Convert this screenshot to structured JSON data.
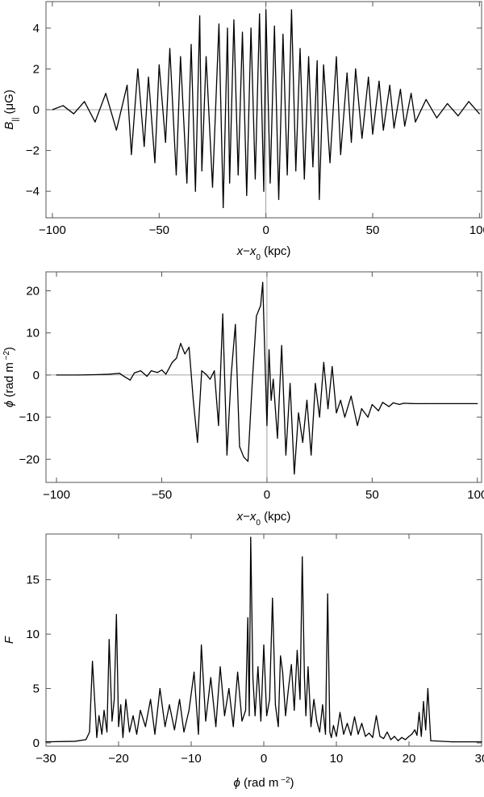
{
  "chart_data": [
    {
      "type": "line",
      "id": "panel-b-parallel",
      "title": "",
      "xlabel": {
        "pre": "x",
        "mid": "−x",
        "sub": "0",
        "post": "  (kpc)"
      },
      "ylabel": {
        "pre": "B",
        "sub": "||",
        "post": "  (μG)"
      },
      "xlim": [
        -103,
        101
      ],
      "ylim": [
        -5.3,
        5.3
      ],
      "xticks": [
        -100,
        -50,
        0,
        50,
        100
      ],
      "yticks": [
        -4,
        -2,
        0,
        2,
        4
      ],
      "xtick_labels": [
        "−100",
        "−50",
        "0",
        "50",
        "100"
      ],
      "ytick_labels": [
        "−4",
        "−2",
        "0",
        "2",
        "4"
      ],
      "zero_lines": {
        "x": 0,
        "y": 0
      },
      "grid": false,
      "series": [
        {
          "color": "#000000",
          "x": [
            -100,
            -95,
            -90,
            -85,
            -80,
            -75,
            -70,
            -65,
            -63,
            -60,
            -57,
            -55,
            -52,
            -50,
            -47,
            -45,
            -42,
            -40,
            -37,
            -35,
            -33,
            -31,
            -30,
            -28,
            -25,
            -22,
            -20,
            -18,
            -17,
            -15,
            -13,
            -11,
            -9,
            -7,
            -5,
            -3,
            -1,
            0,
            2,
            4,
            6,
            8,
            10,
            12,
            14,
            16,
            18,
            20,
            22,
            24,
            25,
            27,
            30,
            33,
            35,
            38,
            40,
            42,
            45,
            48,
            50,
            53,
            55,
            58,
            60,
            63,
            65,
            68,
            70,
            75,
            80,
            85,
            90,
            95,
            100
          ],
          "y": [
            0.0,
            0.2,
            -0.2,
            0.4,
            -0.6,
            0.8,
            -1.0,
            1.2,
            -2.2,
            2.0,
            -1.8,
            1.6,
            -2.6,
            2.2,
            -1.6,
            3.0,
            -3.2,
            2.6,
            -3.6,
            3.2,
            -4.0,
            4.6,
            -3.0,
            2.6,
            -3.8,
            4.2,
            -4.8,
            4.0,
            -3.6,
            4.4,
            -3.2,
            3.8,
            -4.2,
            4.0,
            -3.4,
            4.7,
            -4.0,
            4.9,
            -3.6,
            4.1,
            -4.4,
            3.7,
            -3.2,
            4.9,
            -3.0,
            3.0,
            -3.4,
            2.6,
            -2.8,
            2.4,
            -4.4,
            2.2,
            -2.6,
            2.6,
            -2.2,
            1.8,
            -1.6,
            2.0,
            -1.4,
            1.6,
            -1.2,
            1.4,
            -1.0,
            1.2,
            -0.9,
            1.0,
            -0.8,
            0.8,
            -0.6,
            0.5,
            -0.4,
            0.3,
            -0.3,
            0.4,
            -0.2
          ]
        }
      ]
    },
    {
      "type": "line",
      "id": "panel-phi",
      "title": "",
      "xlabel": {
        "pre": "x",
        "mid": "−x",
        "sub": "0",
        "post": " (kpc)"
      },
      "ylabel": {
        "pre": "ϕ",
        "sub": "",
        "post": " (rad m",
        "sup": " −2",
        "end": ")"
      },
      "xlim": [
        -105,
        102
      ],
      "ylim": [
        -25.5,
        24.5
      ],
      "xticks": [
        -100,
        -50,
        0,
        50,
        100
      ],
      "yticks": [
        -20,
        -10,
        0,
        10,
        20
      ],
      "xtick_labels": [
        "−100",
        "−50",
        "0",
        "50",
        "100"
      ],
      "ytick_labels": [
        "−20",
        "−10",
        "0",
        "10",
        "20"
      ],
      "zero_lines": {
        "x": 0,
        "y": 0
      },
      "grid": false,
      "series": [
        {
          "color": "#000000",
          "x": [
            -100,
            -90,
            -80,
            -75,
            -70,
            -68,
            -65,
            -63,
            -60,
            -57,
            -55,
            -52,
            -50,
            -48,
            -45,
            -43,
            -41,
            -39,
            -37,
            -35,
            -33,
            -31,
            -29,
            -27,
            -25,
            -23,
            -21,
            -19,
            -17,
            -15,
            -13,
            -11,
            -9,
            -7,
            -5,
            -3,
            -2,
            -1,
            0,
            1,
            2,
            3,
            5,
            7,
            9,
            11,
            13,
            15,
            17,
            19,
            21,
            23,
            25,
            27,
            29,
            31,
            33,
            35,
            37,
            40,
            43,
            45,
            48,
            50,
            53,
            55,
            58,
            60,
            63,
            65,
            70,
            75,
            80,
            85,
            90,
            95,
            100
          ],
          "y": [
            0,
            0,
            0.1,
            0.2,
            0.4,
            -0.3,
            -1.2,
            0.5,
            1.0,
            -0.3,
            1.0,
            0.6,
            1.2,
            0.2,
            3.0,
            4.0,
            7.5,
            5.0,
            6.6,
            -6.0,
            -16.0,
            1.0,
            0.2,
            -1.0,
            1.0,
            -12.0,
            14.5,
            -19.0,
            0,
            12.0,
            -17.0,
            -19.5,
            -20.5,
            -2.0,
            14.0,
            16.5,
            22.0,
            5.0,
            -12.0,
            6.0,
            -6.0,
            -1.0,
            -15.0,
            7.0,
            -19.0,
            -2.0,
            -23.5,
            -9.0,
            -16.0,
            -6.0,
            -19.0,
            -2.0,
            -10.0,
            3.0,
            -8.0,
            2.0,
            -9.0,
            -6.0,
            -10.0,
            -5.0,
            -12.0,
            -8.0,
            -10.0,
            -7.0,
            -8.5,
            -6.5,
            -7.5,
            -6.6,
            -7.0,
            -6.7,
            -6.8,
            -6.8,
            -6.8,
            -6.8,
            -6.8,
            -6.8,
            -6.8
          ]
        }
      ]
    },
    {
      "type": "line",
      "id": "panel-faraday",
      "title": "",
      "xlabel": {
        "pre": "ϕ",
        "sub": "",
        "post": " (rad m",
        "sup": " −2",
        "end": ")"
      },
      "ylabel": {
        "pre": "F",
        "sub": "",
        "post": ""
      },
      "xlim": [
        -30,
        30
      ],
      "ylim": [
        -0.3,
        19.2
      ],
      "xticks": [
        -30,
        -20,
        -10,
        0,
        10,
        20,
        30
      ],
      "yticks": [
        0,
        5,
        10,
        15
      ],
      "xtick_labels": [
        "−30",
        "−20",
        "−10",
        "0",
        "10",
        "20",
        "30"
      ],
      "ytick_labels": [
        "0",
        "5",
        "10",
        "15"
      ],
      "zero_lines": null,
      "grid": false,
      "series": [
        {
          "color": "#000000",
          "x": [
            -30,
            -26,
            -24.5,
            -24,
            -23.6,
            -23.3,
            -23.0,
            -22.7,
            -22.3,
            -22.0,
            -21.6,
            -21.3,
            -20.9,
            -20.6,
            -20.3,
            -20.0,
            -19.7,
            -19.4,
            -19.0,
            -18.5,
            -18.0,
            -17.5,
            -17.0,
            -16.3,
            -15.6,
            -15.0,
            -14.3,
            -13.6,
            -13.0,
            -12.3,
            -11.6,
            -11.0,
            -10.3,
            -9.6,
            -9.0,
            -8.6,
            -8.0,
            -7.3,
            -6.6,
            -6.0,
            -5.4,
            -4.8,
            -4.2,
            -3.6,
            -3.0,
            -2.5,
            -2.2,
            -2.0,
            -1.8,
            -1.5,
            -1.2,
            -0.8,
            -0.4,
            0.0,
            0.4,
            0.8,
            1.2,
            1.6,
            2.0,
            2.3,
            2.6,
            3.0,
            3.4,
            3.8,
            4.2,
            4.6,
            5.0,
            5.3,
            5.6,
            5.8,
            6.1,
            6.5,
            6.9,
            7.3,
            7.7,
            8.1,
            8.5,
            8.8,
            9.1,
            9.3,
            9.6,
            10.0,
            10.5,
            11.0,
            11.5,
            12.0,
            12.5,
            13.0,
            13.5,
            14.0,
            14.5,
            15.0,
            15.5,
            16.0,
            16.5,
            17.0,
            17.5,
            18.0,
            18.5,
            19.0,
            19.5,
            20.0,
            20.4,
            20.8,
            21.1,
            21.4,
            21.7,
            22.0,
            22.3,
            22.6,
            23.0,
            26,
            30
          ],
          "y": [
            0.1,
            0.15,
            0.3,
            1.0,
            7.5,
            4.0,
            0.5,
            2.5,
            0.8,
            3.0,
            1.0,
            9.5,
            2.0,
            4.0,
            11.8,
            1.5,
            3.5,
            0.5,
            4.0,
            1.0,
            2.5,
            0.8,
            3.0,
            1.5,
            4.0,
            0.8,
            5.0,
            1.5,
            3.5,
            1.2,
            4.0,
            1.0,
            3.0,
            6.5,
            0.8,
            9.0,
            2.0,
            6.0,
            1.5,
            7.0,
            2.5,
            5.0,
            1.5,
            6.5,
            2.0,
            3.0,
            11.5,
            2.5,
            18.9,
            6.0,
            2.5,
            7.0,
            2.0,
            9.0,
            2.5,
            4.0,
            13.3,
            3.5,
            1.5,
            8.0,
            6.5,
            2.5,
            5.0,
            7.2,
            3.0,
            8.5,
            4.0,
            17.1,
            6.0,
            2.5,
            7.0,
            1.5,
            4.0,
            2.0,
            1.0,
            3.5,
            0.8,
            13.7,
            1.0,
            0.5,
            1.6,
            0.6,
            2.8,
            0.8,
            1.8,
            0.7,
            2.4,
            0.8,
            1.8,
            0.6,
            0.9,
            0.5,
            2.5,
            0.6,
            0.4,
            1.0,
            0.3,
            0.6,
            0.2,
            0.5,
            0.3,
            0.6,
            0.8,
            1.2,
            0.7,
            2.8,
            0.6,
            3.8,
            1.2,
            5.0,
            0.2,
            0.1,
            0.1
          ]
        }
      ]
    }
  ]
}
